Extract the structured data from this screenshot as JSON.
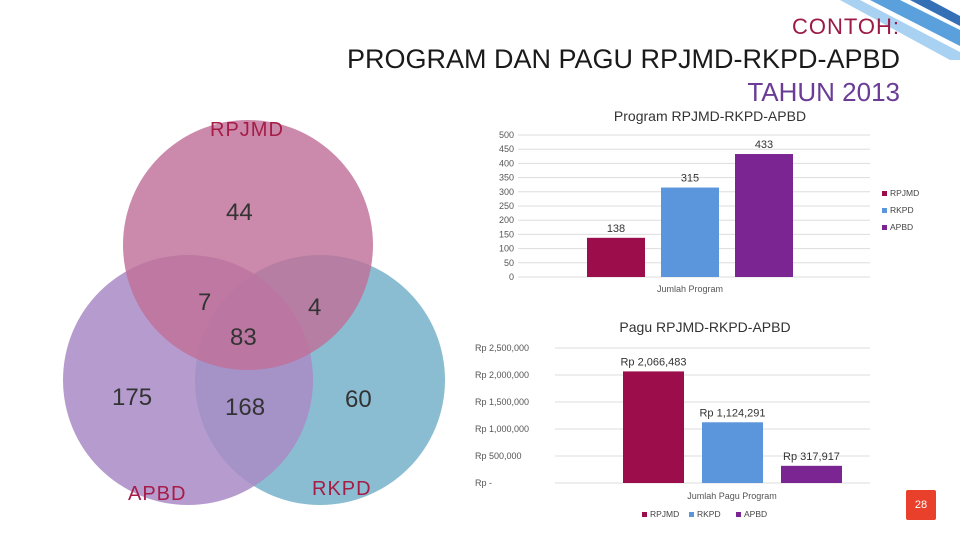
{
  "header": {
    "label": "CONTOH:",
    "title": "PROGRAM DAN PAGU RPJMD-RKPD-APBD",
    "year": "TAHUN 2013"
  },
  "venn": {
    "sets": [
      {
        "name": "RPJMD",
        "color": "#c07098",
        "label_color": "#a61c47"
      },
      {
        "name": "RKPD",
        "color": "#7ab4cc",
        "label_color": "#a61c47"
      },
      {
        "name": "APBD",
        "color": "#a98bc6",
        "label_color": "#a61c47"
      }
    ],
    "regions": {
      "rpjmd_only": "44",
      "apbd_only": "175",
      "rkpd_only": "60",
      "rpjmd_apbd": "7",
      "rpjmd_rkpd": "4",
      "center": "83",
      "apbd_rkpd": "168"
    }
  },
  "chart_data": [
    {
      "type": "bar",
      "title": "Program RPJMD-RKPD-APBD",
      "xlabel": "Jumlah Program",
      "categories": [
        "Jumlah Program"
      ],
      "series": [
        {
          "name": "RPJMD",
          "values": [
            138
          ],
          "label": "138",
          "color": "#9b0e4b"
        },
        {
          "name": "RKPD",
          "values": [
            315
          ],
          "label": "315",
          "color": "#5b95dc"
        },
        {
          "name": "APBD",
          "values": [
            433
          ],
          "label": "433",
          "color": "#7b2592"
        }
      ],
      "ylim": [
        0,
        500
      ],
      "yticks": [
        "0",
        "50",
        "100",
        "150",
        "200",
        "250",
        "300",
        "350",
        "400",
        "450",
        "500"
      ],
      "legend": "right",
      "grid": true
    },
    {
      "type": "bar",
      "title": "Pagu RPJMD-RKPD-APBD",
      "xlabel": "Jumlah Pagu Program",
      "categories": [
        "Jumlah Pagu Program"
      ],
      "series": [
        {
          "name": "RPJMD",
          "values": [
            2066483
          ],
          "label": "Rp 2,066,483",
          "color": "#9b0e4b"
        },
        {
          "name": "RKPD",
          "values": [
            1124291
          ],
          "label": "Rp 1,124,291",
          "color": "#5b95dc"
        },
        {
          "name": "APBD",
          "values": [
            317917
          ],
          "label": "Rp 317,917",
          "color": "#7b2592"
        }
      ],
      "ylim": [
        0,
        2500000
      ],
      "yticks": [
        "Rp -",
        "Rp 500,000",
        "Rp 1,000,000",
        "Rp 1,500,000",
        "Rp 2,000,000",
        "Rp 2,500,000"
      ],
      "legend": "bottom",
      "grid": true
    }
  ],
  "footer": {
    "page_number": "28"
  }
}
